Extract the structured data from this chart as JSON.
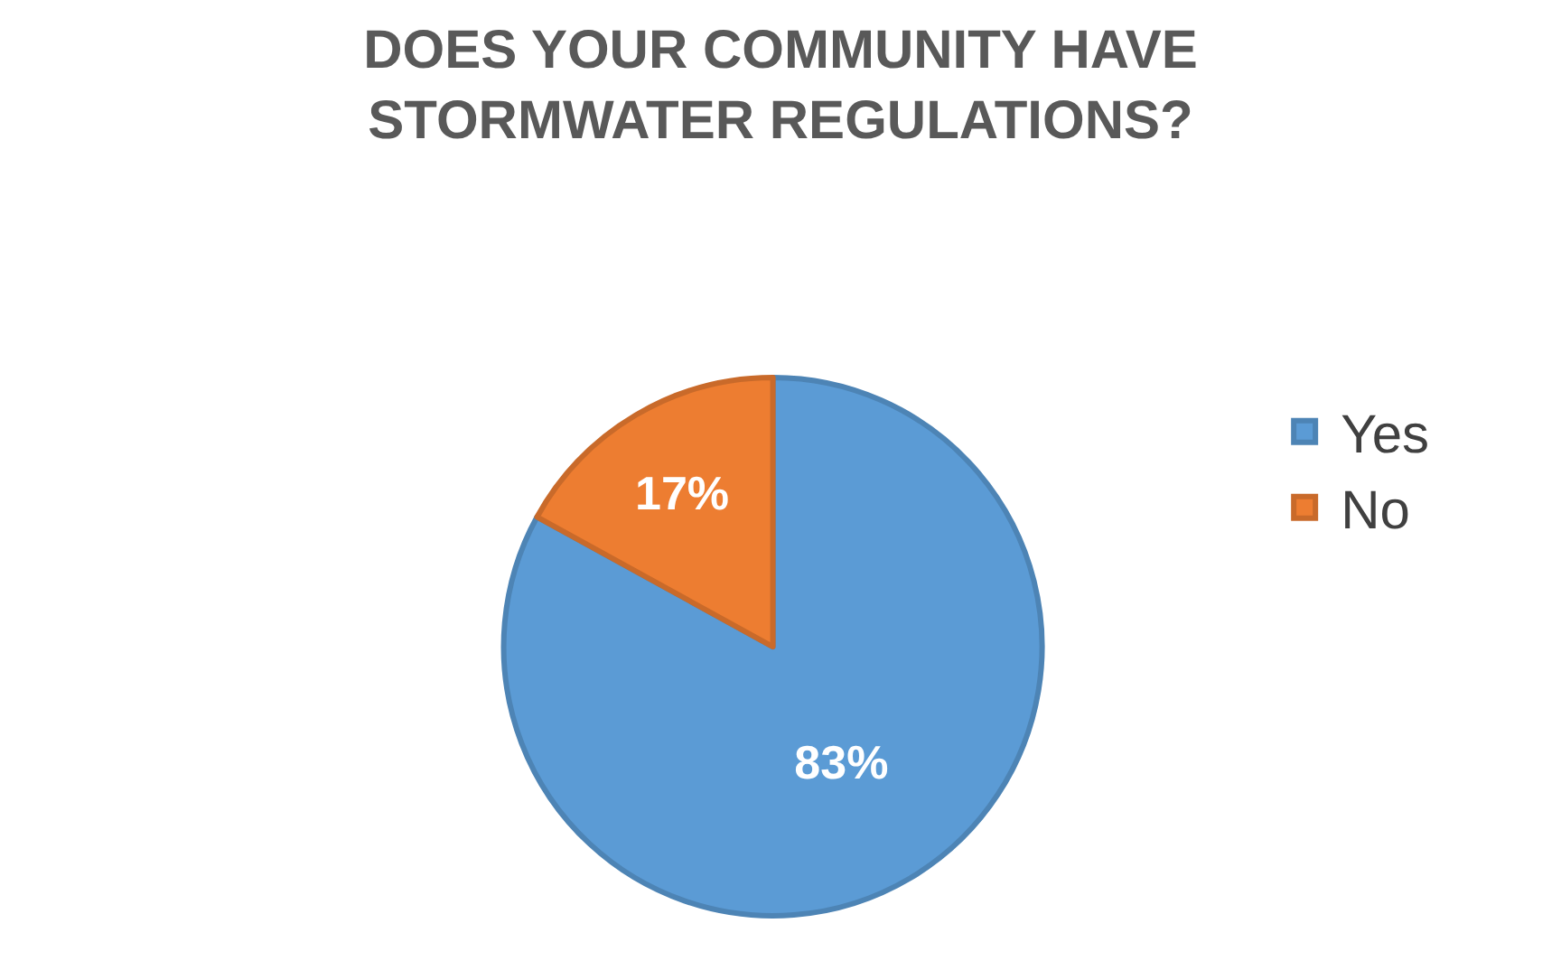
{
  "chart_data": {
    "type": "pie",
    "title": "DOES YOUR COMMUNITY HAVE STORMWATER REGULATIONS?",
    "categories": [
      "Yes",
      "No"
    ],
    "values": [
      83,
      17
    ],
    "colors": [
      "#5b9bd5",
      "#ed7d31"
    ],
    "value_labels": [
      "83%",
      "17%"
    ],
    "legend": "right"
  }
}
